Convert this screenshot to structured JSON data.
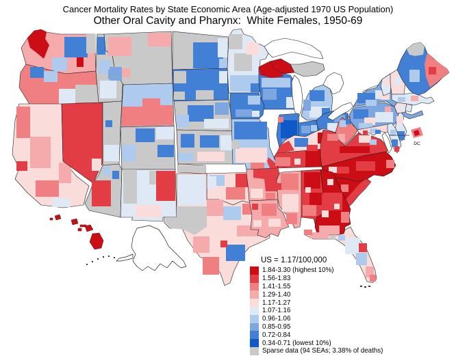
{
  "title": {
    "line1": "Cancer Mortality Rates by State Economic Area (Age-adjusted 1970 US Population)",
    "line2": "Other Oral Cavity and Pharynx:  White Females, 1950-69"
  },
  "map": {
    "description": "Choropleth map of US State Economic Areas",
    "dc_callout_label": "DC"
  },
  "legend": {
    "us_rate": "US = 1.17/100,000",
    "classes": [
      {
        "range": "1.84-3.30 (highest 10%)",
        "color": "#cb0e15"
      },
      {
        "range": "1.56-1.83",
        "color": "#e23d44"
      },
      {
        "range": "1.41-1.55",
        "color": "#ef7f81"
      },
      {
        "range": "1.29-1.40",
        "color": "#f5abab"
      },
      {
        "range": "1.17-1.27",
        "color": "#fadcdb"
      },
      {
        "range": "1.07-1.16",
        "color": "#dfe8f5"
      },
      {
        "range": "0.96-1.06",
        "color": "#aecbed"
      },
      {
        "range": "0.85-0.95",
        "color": "#7ea7e0"
      },
      {
        "range": "0.72-0.84",
        "color": "#4280d5"
      },
      {
        "range": "0.34-0.71 (lowest 10%)",
        "color": "#0f58c8"
      }
    ],
    "sparse": {
      "range": "Sparse data (94 SEAs; 3.38% of deaths)",
      "color": "#c9c9c9"
    }
  }
}
